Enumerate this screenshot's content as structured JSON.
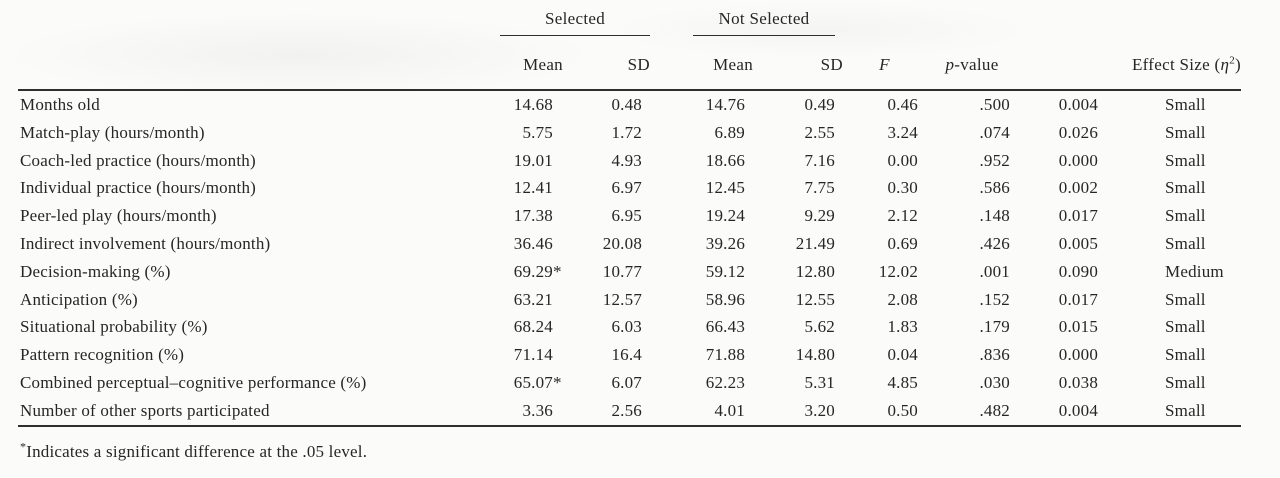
{
  "table": {
    "col_groups": {
      "selected": "Selected",
      "not_selected": "Not Selected"
    },
    "headers": {
      "selected_mean": "Mean",
      "selected_sd": "SD",
      "not_selected_mean": "Mean",
      "not_selected_sd": "SD",
      "f": "F",
      "p_italic": "p",
      "p_rest": "-value",
      "effect_prefix": "Effect Size (",
      "effect_eta": "η",
      "effect_sup": "2",
      "effect_close": ")"
    },
    "rows": [
      {
        "label": "Months old",
        "sel_mean": "14.68",
        "sel_sd": "0.48",
        "ns_mean": "14.76",
        "ns_sd": "0.49",
        "f": "0.46",
        "p": ".500",
        "eta2": "0.004",
        "magnitude": "Small"
      },
      {
        "label": "Match-play (hours/month)",
        "sel_mean": "5.75",
        "sel_sd": "1.72",
        "ns_mean": "6.89",
        "ns_sd": "2.55",
        "f": "3.24",
        "p": ".074",
        "eta2": "0.026",
        "magnitude": "Small"
      },
      {
        "label": "Coach-led practice (hours/month)",
        "sel_mean": "19.01",
        "sel_sd": "4.93",
        "ns_mean": "18.66",
        "ns_sd": "7.16",
        "f": "0.00",
        "p": ".952",
        "eta2": "0.000",
        "magnitude": "Small"
      },
      {
        "label": "Individual practice (hours/month)",
        "sel_mean": "12.41",
        "sel_sd": "6.97",
        "ns_mean": "12.45",
        "ns_sd": "7.75",
        "f": "0.30",
        "p": ".586",
        "eta2": "0.002",
        "magnitude": "Small"
      },
      {
        "label": "Peer-led play (hours/month)",
        "sel_mean": "17.38",
        "sel_sd": "6.95",
        "ns_mean": "19.24",
        "ns_sd": "9.29",
        "f": "2.12",
        "p": ".148",
        "eta2": "0.017",
        "magnitude": "Small"
      },
      {
        "label": "Indirect involvement (hours/month)",
        "sel_mean": "36.46",
        "sel_sd": "20.08",
        "ns_mean": "39.26",
        "ns_sd": "21.49",
        "f": "0.69",
        "p": ".426",
        "eta2": "0.005",
        "magnitude": "Small"
      },
      {
        "label": "Decision-making (%)",
        "sel_mean": "69.29*",
        "sel_sd": "10.77",
        "ns_mean": "59.12",
        "ns_sd": "12.80",
        "f": "12.02",
        "p": ".001",
        "eta2": "0.090",
        "magnitude": "Medium"
      },
      {
        "label": "Anticipation (%)",
        "sel_mean": "63.21",
        "sel_sd": "12.57",
        "ns_mean": "58.96",
        "ns_sd": "12.55",
        "f": "2.08",
        "p": ".152",
        "eta2": "0.017",
        "magnitude": "Small"
      },
      {
        "label": "Situational probability (%)",
        "sel_mean": "68.24",
        "sel_sd": "6.03",
        "ns_mean": "66.43",
        "ns_sd": "5.62",
        "f": "1.83",
        "p": ".179",
        "eta2": "0.015",
        "magnitude": "Small"
      },
      {
        "label": "Pattern recognition (%)",
        "sel_mean": "71.14",
        "sel_sd": "16.4",
        "ns_mean": "71.88",
        "ns_sd": "14.80",
        "f": "0.04",
        "p": ".836",
        "eta2": "0.000",
        "magnitude": "Small"
      },
      {
        "label": "Combined perceptual–cognitive performance (%)",
        "sel_mean": "65.07*",
        "sel_sd": "6.07",
        "ns_mean": "62.23",
        "ns_sd": "5.31",
        "f": "4.85",
        "p": ".030",
        "eta2": "0.038",
        "magnitude": "Small"
      },
      {
        "label": "Number of other sports participated",
        "sel_mean": "3.36",
        "sel_sd": "2.56",
        "ns_mean": "4.01",
        "ns_sd": "3.20",
        "f": "0.50",
        "p": ".482",
        "eta2": "0.004",
        "magnitude": "Small"
      }
    ]
  },
  "footnote": {
    "star": "*",
    "text": "Indicates a significant difference at the .05 level."
  }
}
